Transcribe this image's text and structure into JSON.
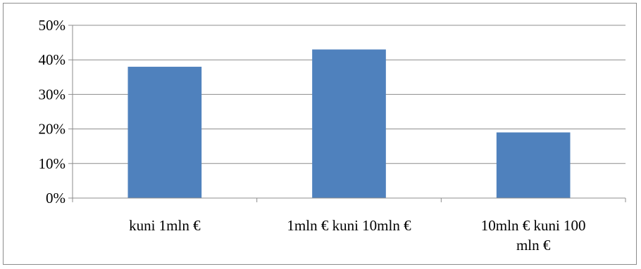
{
  "chart_data": {
    "type": "bar",
    "categories": [
      [
        "kuni 1mln €"
      ],
      [
        "1mln € kuni 10mln €"
      ],
      [
        "10mln € kuni 100",
        "mln €"
      ]
    ],
    "values": [
      38,
      43,
      19
    ],
    "yticks": [
      "0%",
      "10%",
      "20%",
      "30%",
      "40%",
      "50%"
    ],
    "ylim": [
      0,
      50
    ],
    "grid": true,
    "legend": "none",
    "bar_color": "#4f81bd",
    "grid_color": "#8c8c8c",
    "title": "",
    "xlabel": "",
    "ylabel": ""
  }
}
